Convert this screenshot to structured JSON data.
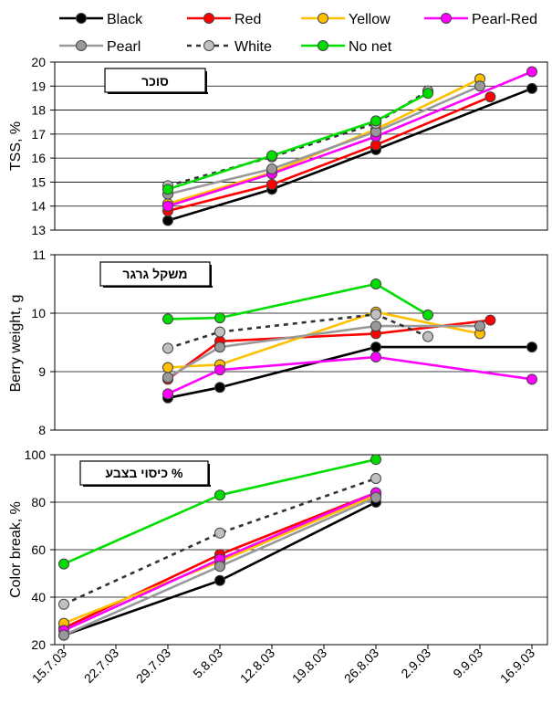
{
  "legend": [
    {
      "name": "Black",
      "color": "#000000",
      "marker_fill": "#000000",
      "dashed": false
    },
    {
      "name": "Red",
      "color": "#ff0000",
      "marker_fill": "#ff0000",
      "dashed": false
    },
    {
      "name": "Yellow",
      "color": "#ffc000",
      "marker_fill": "#ffc000",
      "dashed": false
    },
    {
      "name": "Pearl-Red",
      "color": "#ff00ff",
      "marker_fill": "#ff00ff",
      "dashed": false
    },
    {
      "name": "Pearl",
      "color": "#999999",
      "marker_fill": "#999999",
      "dashed": false
    },
    {
      "name": "White",
      "color": "#333333",
      "marker_fill": "#c0c0c0",
      "dashed": true
    },
    {
      "name": "No net",
      "color": "#00dd00",
      "marker_fill": "#00dd00",
      "dashed": false
    }
  ],
  "x_ticks": [
    "15.7.03",
    "22.7.03",
    "29.7.03",
    "5.8.03",
    "12.8.03",
    "19.8.03",
    "26.8.03",
    "2.9.03",
    "9.9.03",
    "16.9.03"
  ],
  "chart_data": [
    {
      "type": "line",
      "hebrew_label": "סוכר",
      "ylabel": "TSS, %",
      "ylim": [
        13,
        20
      ],
      "yticks": [
        13,
        14,
        15,
        16,
        17,
        18,
        19,
        20
      ],
      "x_range": [
        0,
        9
      ],
      "series": [
        {
          "name": "Black",
          "x": [
            2,
            4,
            6,
            9
          ],
          "values": [
            13.4,
            14.7,
            16.35,
            18.9
          ]
        },
        {
          "name": "Red",
          "x": [
            2,
            4,
            6,
            8.2
          ],
          "values": [
            13.8,
            14.9,
            16.55,
            18.55
          ]
        },
        {
          "name": "Yellow",
          "x": [
            2,
            4,
            6,
            8
          ],
          "values": [
            14.1,
            15.4,
            17.2,
            19.3
          ]
        },
        {
          "name": "Pearl-Red",
          "x": [
            2,
            4,
            6,
            9
          ],
          "values": [
            14.0,
            15.35,
            16.9,
            19.6
          ]
        },
        {
          "name": "Pearl",
          "x": [
            2,
            4,
            6,
            8
          ],
          "values": [
            14.5,
            15.55,
            17.1,
            19.0
          ]
        },
        {
          "name": "White",
          "x": [
            2,
            4,
            6,
            7
          ],
          "values": [
            14.85,
            16.05,
            17.45,
            18.8
          ]
        },
        {
          "name": "No net",
          "x": [
            2,
            4,
            6,
            7
          ],
          "values": [
            14.7,
            16.1,
            17.55,
            18.7
          ]
        }
      ]
    },
    {
      "type": "line",
      "hebrew_label": "משקל גרגר",
      "ylabel": "Berry weight, g",
      "ylim": [
        8,
        11
      ],
      "yticks": [
        8,
        9,
        10,
        11
      ],
      "x_range": [
        0,
        9
      ],
      "series": [
        {
          "name": "Black",
          "x": [
            2,
            3,
            6,
            9
          ],
          "values": [
            8.55,
            8.73,
            9.42,
            9.42
          ]
        },
        {
          "name": "Red",
          "x": [
            2,
            3,
            6,
            8.2
          ],
          "values": [
            8.87,
            9.52,
            9.65,
            9.88
          ]
        },
        {
          "name": "Yellow",
          "x": [
            2,
            3,
            6,
            8
          ],
          "values": [
            9.07,
            9.12,
            10.02,
            9.65
          ]
        },
        {
          "name": "Pearl-Red",
          "x": [
            2,
            3,
            6,
            9
          ],
          "values": [
            8.62,
            9.03,
            9.25,
            8.87
          ]
        },
        {
          "name": "Pearl",
          "x": [
            2,
            3,
            6,
            8
          ],
          "values": [
            8.9,
            9.42,
            9.78,
            9.78
          ]
        },
        {
          "name": "White",
          "x": [
            2,
            3,
            6,
            7
          ],
          "values": [
            9.4,
            9.68,
            9.98,
            9.6
          ]
        },
        {
          "name": "No net",
          "x": [
            2,
            3,
            6,
            7
          ],
          "values": [
            9.9,
            9.92,
            10.5,
            9.97
          ]
        }
      ]
    },
    {
      "type": "line",
      "hebrew_label": "% כיסוי בצבע",
      "ylabel": "Color break, %",
      "ylim": [
        20,
        100
      ],
      "yticks": [
        20,
        40,
        60,
        80,
        100
      ],
      "x_range": [
        0,
        9
      ],
      "series": [
        {
          "name": "Black",
          "x": [
            0,
            3,
            6
          ],
          "values": [
            24,
            47,
            80
          ]
        },
        {
          "name": "Red",
          "x": [
            0,
            3,
            6
          ],
          "values": [
            27,
            58,
            84
          ]
        },
        {
          "name": "Yellow",
          "x": [
            0,
            3,
            6
          ],
          "values": [
            29,
            55,
            83
          ]
        },
        {
          "name": "Pearl-Red",
          "x": [
            0,
            3,
            6
          ],
          "values": [
            26,
            56,
            84
          ]
        },
        {
          "name": "Pearl",
          "x": [
            0,
            3,
            6
          ],
          "values": [
            24,
            53,
            82
          ]
        },
        {
          "name": "White",
          "x": [
            0,
            3,
            6
          ],
          "values": [
            37,
            67,
            90
          ]
        },
        {
          "name": "No net",
          "x": [
            0,
            3,
            6
          ],
          "values": [
            54,
            83,
            98
          ]
        }
      ]
    }
  ]
}
